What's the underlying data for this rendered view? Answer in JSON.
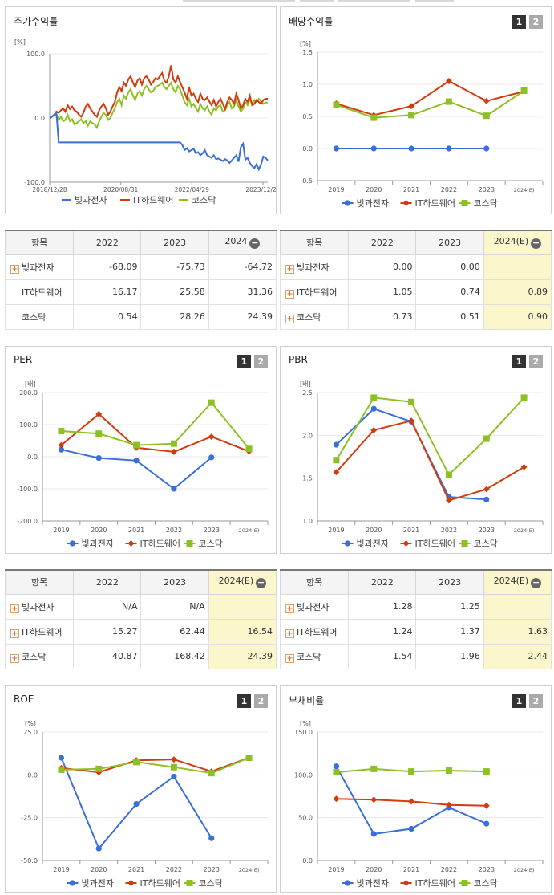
{
  "colors": {
    "series": [
      "#3a6fd8",
      "#d33a0c",
      "#8cc024"
    ]
  },
  "legend": [
    "빛과전자",
    "IT하드웨어",
    "코스닥"
  ],
  "panels": {
    "stock": {
      "title": "주가수익률"
    },
    "dividend": {
      "title": "배당수익률",
      "page1": "1",
      "page2": "2"
    },
    "per": {
      "title": "PER",
      "page1": "1",
      "page2": "2"
    },
    "pbr": {
      "title": "PBR",
      "page1": "1",
      "page2": "2"
    },
    "roe": {
      "title": "ROE",
      "page1": "1",
      "page2": "2"
    },
    "debt": {
      "title": "부채비율",
      "page1": "1",
      "page2": "2"
    }
  },
  "tables": {
    "stock": {
      "header": [
        "항목",
        "2022",
        "2023",
        "2024"
      ],
      "rows": [
        {
          "name": "빛과전자",
          "plus": true,
          "v": [
            "-68.09",
            "-75.73",
            "-64.72"
          ]
        },
        {
          "name": "IT하드웨어",
          "plus": false,
          "v": [
            "16.17",
            "25.58",
            "31.36"
          ]
        },
        {
          "name": "코스닥",
          "plus": false,
          "v": [
            "0.54",
            "28.26",
            "24.39"
          ]
        }
      ]
    },
    "dividend": {
      "header": [
        "항목",
        "2022",
        "2023",
        "2024(E)"
      ],
      "rows": [
        {
          "name": "빛과전자",
          "plus": true,
          "v": [
            "0.00",
            "0.00",
            ""
          ]
        },
        {
          "name": "IT하드웨어",
          "plus": true,
          "v": [
            "1.05",
            "0.74",
            "0.89"
          ]
        },
        {
          "name": "코스닥",
          "plus": true,
          "v": [
            "0.73",
            "0.51",
            "0.90"
          ]
        }
      ]
    },
    "per": {
      "header": [
        "항목",
        "2022",
        "2023",
        "2024(E)"
      ],
      "rows": [
        {
          "name": "빛과전자",
          "plus": true,
          "v": [
            "N/A",
            "N/A",
            ""
          ]
        },
        {
          "name": "IT하드웨어",
          "plus": true,
          "v": [
            "15.27",
            "62.44",
            "16.54"
          ]
        },
        {
          "name": "코스닥",
          "plus": true,
          "v": [
            "40.87",
            "168.42",
            "24.39"
          ]
        }
      ]
    },
    "pbr": {
      "header": [
        "항목",
        "2022",
        "2023",
        "2024(E)"
      ],
      "rows": [
        {
          "name": "빛과전자",
          "plus": true,
          "v": [
            "1.28",
            "1.25",
            ""
          ]
        },
        {
          "name": "IT하드웨어",
          "plus": true,
          "v": [
            "1.24",
            "1.37",
            "1.63"
          ]
        },
        {
          "name": "코스닥",
          "plus": true,
          "v": [
            "1.54",
            "1.96",
            "2.44"
          ]
        }
      ]
    }
  },
  "chart_data": [
    {
      "id": "stock",
      "type": "line",
      "unit": "[%]",
      "ylim": [
        -100,
        100
      ],
      "yticks": [
        "100.0",
        "0.0",
        "-100.0"
      ],
      "xticks": [
        "2018/12/28",
        "2020/08/31",
        "2022/04/29",
        "2023/12/28"
      ],
      "series": [
        {
          "name": "빛과전자",
          "values": [
            0,
            2,
            5,
            8,
            -38,
            -38,
            -38,
            -38,
            -38,
            -38,
            -38,
            -38,
            -38,
            -38,
            -38,
            -38,
            -38,
            -38,
            -38,
            -38,
            -38,
            -38,
            -38,
            -38,
            -38,
            -38,
            -38,
            -38,
            -38,
            -38,
            -38,
            -38,
            -38,
            -38,
            -38,
            -38,
            -38,
            -38,
            -38,
            -38,
            -38,
            -38,
            -38,
            -38,
            -38,
            -38,
            -38,
            -38,
            -38,
            -38,
            -38,
            -38,
            -38,
            -38,
            -38,
            -38,
            -38,
            -38,
            -38,
            -42,
            -50,
            -47,
            -52,
            -50,
            -48,
            -55,
            -53,
            -58,
            -55,
            -50,
            -58,
            -60,
            -62,
            -58,
            -64,
            -63,
            -65,
            -67,
            -64,
            -66,
            -70,
            -66,
            -62,
            -58,
            -68,
            -45,
            -40,
            -65,
            -62,
            -70,
            -75,
            -78,
            -72,
            -80,
            -72,
            -60,
            -62,
            -66
          ]
        },
        {
          "name": "IT하드웨어",
          "values": [
            0,
            2,
            5,
            10,
            8,
            12,
            15,
            10,
            20,
            14,
            18,
            12,
            10,
            5,
            2,
            8,
            18,
            22,
            15,
            10,
            5,
            2,
            12,
            18,
            22,
            15,
            5,
            10,
            18,
            25,
            40,
            48,
            42,
            55,
            50,
            60,
            65,
            55,
            48,
            58,
            62,
            52,
            62,
            65,
            60,
            52,
            56,
            62,
            60,
            65,
            70,
            58,
            55,
            65,
            82,
            60,
            55,
            65,
            56,
            48,
            40,
            30,
            48,
            35,
            38,
            30,
            25,
            38,
            30,
            28,
            32,
            26,
            20,
            28,
            18,
            25,
            30,
            22,
            14,
            25,
            32,
            28,
            22,
            38,
            28,
            15,
            20,
            30,
            25,
            35,
            20,
            22,
            28,
            25,
            22,
            28,
            30,
            30
          ]
        },
        {
          "name": "코스닥",
          "values": [
            0,
            2,
            4,
            6,
            -3,
            2,
            -5,
            -3,
            5,
            -5,
            -2,
            -10,
            -8,
            -5,
            -2,
            -8,
            -5,
            -12,
            -5,
            -8,
            -10,
            -15,
            -5,
            2,
            8,
            5,
            -3,
            0,
            8,
            15,
            25,
            30,
            20,
            35,
            30,
            40,
            45,
            35,
            28,
            38,
            42,
            35,
            45,
            50,
            45,
            40,
            42,
            48,
            50,
            52,
            55,
            48,
            45,
            50,
            55,
            45,
            40,
            50,
            45,
            35,
            25,
            20,
            30,
            18,
            22,
            15,
            10,
            22,
            15,
            12,
            18,
            10,
            5,
            15,
            12,
            18,
            20,
            10,
            12,
            20,
            25,
            15,
            18,
            28,
            18,
            10,
            15,
            25,
            20,
            30,
            22,
            28,
            25,
            30,
            26,
            22,
            24,
            24
          ]
        }
      ]
    },
    {
      "id": "dividend",
      "type": "line",
      "unit": "[%]",
      "ylim": [
        -0.5,
        1.5
      ],
      "yticks": [
        "1.5",
        "1.0",
        "0.5",
        "0.0",
        "-0.5"
      ],
      "categories": [
        "2019",
        "2020",
        "2021",
        "2022",
        "2023",
        "2024(E)"
      ],
      "series": [
        {
          "name": "빛과전자",
          "values": [
            0,
            0,
            0,
            0,
            0,
            null
          ]
        },
        {
          "name": "IT하드웨어",
          "values": [
            0.7,
            0.52,
            0.66,
            1.05,
            0.74,
            0.89
          ]
        },
        {
          "name": "코스닥",
          "values": [
            0.68,
            0.48,
            0.52,
            0.73,
            0.51,
            0.9
          ]
        }
      ]
    },
    {
      "id": "per",
      "type": "line",
      "unit": "[배]",
      "ylim": [
        -200,
        200
      ],
      "yticks": [
        "200.0",
        "100.0",
        "0.0",
        "-100.0",
        "-200.0"
      ],
      "categories": [
        "2019",
        "2020",
        "2021",
        "2022",
        "2023",
        "2024(E)"
      ],
      "series": [
        {
          "name": "빛과전자",
          "values": [
            22,
            -4,
            -12,
            -100,
            -2,
            null
          ]
        },
        {
          "name": "IT하드웨어",
          "values": [
            36,
            133,
            28,
            15.27,
            62.44,
            16.54
          ]
        },
        {
          "name": "코스닥",
          "values": [
            80,
            72,
            36,
            40.87,
            168.42,
            24.39
          ]
        }
      ]
    },
    {
      "id": "pbr",
      "type": "line",
      "unit": "[배]",
      "ylim": [
        1.0,
        2.5
      ],
      "yticks": [
        "2.5",
        "2.0",
        "1.5",
        "1.0"
      ],
      "categories": [
        "2019",
        "2020",
        "2021",
        "2022",
        "2023",
        "2024(E)"
      ],
      "series": [
        {
          "name": "빛과전자",
          "values": [
            1.89,
            2.31,
            2.16,
            1.28,
            1.25,
            null
          ]
        },
        {
          "name": "IT하드웨어",
          "values": [
            1.57,
            2.06,
            2.17,
            1.24,
            1.37,
            1.63
          ]
        },
        {
          "name": "코스닥",
          "values": [
            1.71,
            2.44,
            2.39,
            1.54,
            1.96,
            2.44
          ]
        }
      ]
    },
    {
      "id": "roe",
      "type": "line",
      "unit": "[%]",
      "ylim": [
        -50,
        25
      ],
      "yticks": [
        "25.0",
        "0.0",
        "-25.0",
        "-50.0"
      ],
      "categories": [
        "2019",
        "2020",
        "2021",
        "2022",
        "2023",
        "2024(E)"
      ],
      "series": [
        {
          "name": "빛과전자",
          "values": [
            10,
            -43,
            -17,
            -1,
            -37,
            null
          ]
        },
        {
          "name": "IT하드웨어",
          "values": [
            4,
            1.5,
            8.5,
            9,
            2,
            10
          ]
        },
        {
          "name": "코스닥",
          "values": [
            3,
            3.5,
            7.5,
            4.5,
            1,
            10
          ]
        }
      ]
    },
    {
      "id": "debt",
      "type": "line",
      "unit": "[%]",
      "ylim": [
        0,
        150
      ],
      "yticks": [
        "150.0",
        "100.0",
        "50.0",
        "0.0"
      ],
      "categories": [
        "2019",
        "2020",
        "2021",
        "2022",
        "2023",
        "2024(E)"
      ],
      "series": [
        {
          "name": "빛과전자",
          "values": [
            110,
            31,
            37,
            62,
            43,
            null
          ]
        },
        {
          "name": "IT하드웨어",
          "values": [
            72,
            71,
            69,
            65,
            64,
            null
          ]
        },
        {
          "name": "코스닥",
          "values": [
            103,
            107,
            104,
            105,
            104,
            null
          ]
        }
      ]
    }
  ]
}
